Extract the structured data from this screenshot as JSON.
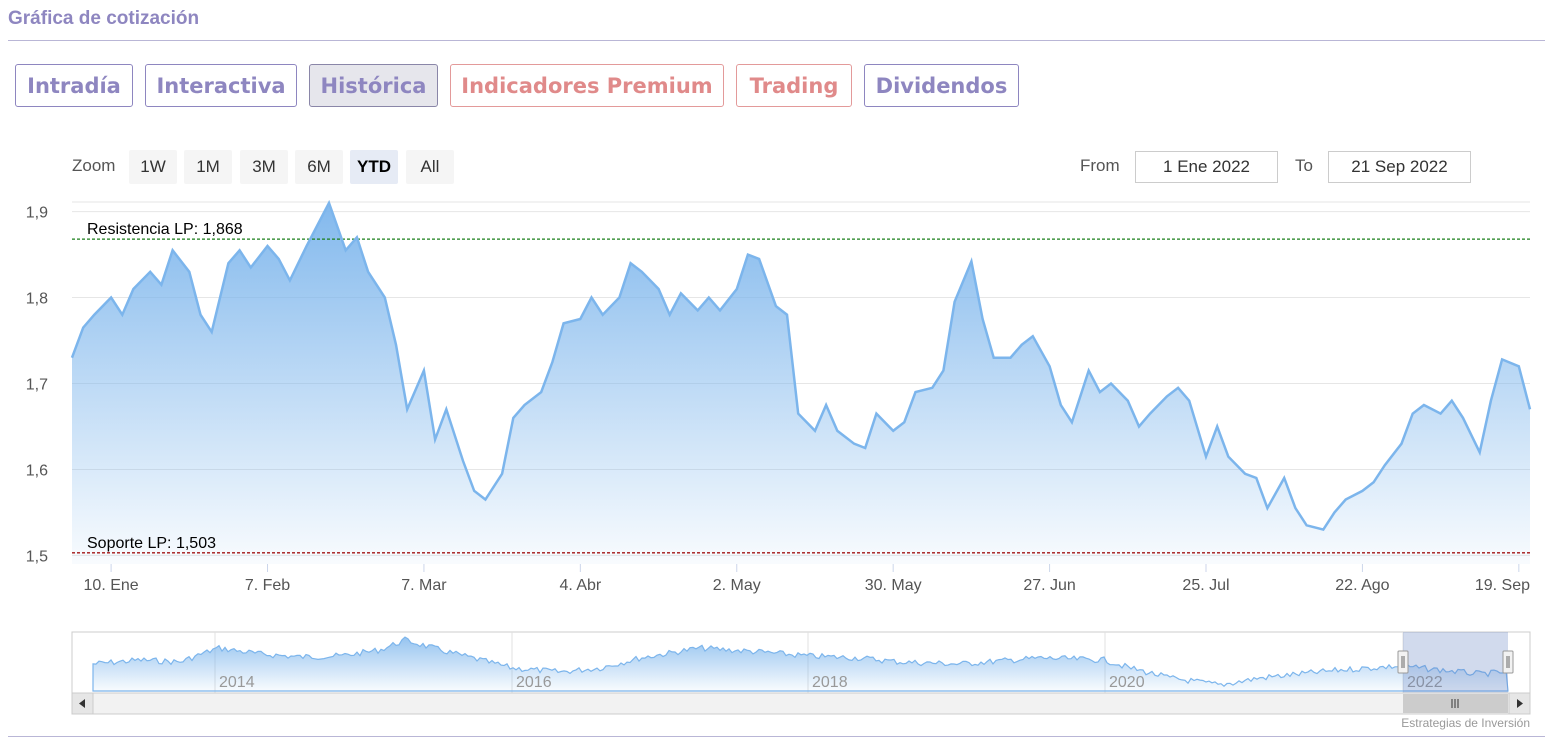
{
  "page": {
    "title": "Gráfica de cotización"
  },
  "tabs": [
    {
      "label": "Intradía",
      "active": false,
      "premium": false
    },
    {
      "label": "Interactiva",
      "active": false,
      "premium": false
    },
    {
      "label": "Histórica",
      "active": true,
      "premium": false
    },
    {
      "label": "Indicadores Premium",
      "active": false,
      "premium": true
    },
    {
      "label": "Trading",
      "active": false,
      "premium": true
    },
    {
      "label": "Dividendos",
      "active": false,
      "premium": false
    }
  ],
  "zoom": {
    "label": "Zoom",
    "buttons": [
      "1W",
      "1M",
      "3M",
      "6M",
      "YTD",
      "All"
    ],
    "selected": "YTD"
  },
  "range": {
    "from_label": "From",
    "from_value": "1 Ene 2022",
    "to_label": "To",
    "to_value": "21 Sep 2022"
  },
  "colors": {
    "accent": "#8e86c0",
    "premium": "#e08a8a",
    "line": "#7cb5ec",
    "resistance": "#1a7f1a",
    "support": "#a31515"
  },
  "chart_data": {
    "type": "area",
    "x_start": "2022-01-03",
    "x_end": "2022-09-21",
    "y_ticks": [
      "1,5",
      "1,6",
      "1,7",
      "1,8",
      "1,9"
    ],
    "ylim": [
      1.49,
      1.91
    ],
    "x_ticks": [
      {
        "label": "10. Ene",
        "date": "2022-01-10"
      },
      {
        "label": "7. Feb",
        "date": "2022-02-07"
      },
      {
        "label": "7. Mar",
        "date": "2022-03-07"
      },
      {
        "label": "4. Abr",
        "date": "2022-04-04"
      },
      {
        "label": "2. May",
        "date": "2022-05-02"
      },
      {
        "label": "30. May",
        "date": "2022-05-30"
      },
      {
        "label": "27. Jun",
        "date": "2022-06-27"
      },
      {
        "label": "25. Jul",
        "date": "2022-07-25"
      },
      {
        "label": "22. Ago",
        "date": "2022-08-22"
      },
      {
        "label": "19. Sep",
        "date": "2022-09-19"
      }
    ],
    "plot_lines": [
      {
        "label": "Resistencia LP: 1,868",
        "value": 1.868,
        "color": "#1a7f1a"
      },
      {
        "label": "Soporte LP: 1,503",
        "value": 1.503,
        "color": "#a31515"
      }
    ],
    "series": [
      {
        "points": [
          [
            "2022-01-03",
            1.73
          ],
          [
            "2022-01-05",
            1.765
          ],
          [
            "2022-01-07",
            1.78
          ],
          [
            "2022-01-10",
            1.8
          ],
          [
            "2022-01-12",
            1.78
          ],
          [
            "2022-01-14",
            1.81
          ],
          [
            "2022-01-17",
            1.83
          ],
          [
            "2022-01-19",
            1.815
          ],
          [
            "2022-01-21",
            1.855
          ],
          [
            "2022-01-24",
            1.83
          ],
          [
            "2022-01-26",
            1.78
          ],
          [
            "2022-01-28",
            1.76
          ],
          [
            "2022-01-31",
            1.84
          ],
          [
            "2022-02-02",
            1.855
          ],
          [
            "2022-02-04",
            1.835
          ],
          [
            "2022-02-07",
            1.86
          ],
          [
            "2022-02-09",
            1.845
          ],
          [
            "2022-02-11",
            1.82
          ],
          [
            "2022-02-14",
            1.86
          ],
          [
            "2022-02-16",
            1.885
          ],
          [
            "2022-02-18",
            1.91
          ],
          [
            "2022-02-21",
            1.855
          ],
          [
            "2022-02-23",
            1.87
          ],
          [
            "2022-02-25",
            1.83
          ],
          [
            "2022-02-28",
            1.8
          ],
          [
            "2022-03-02",
            1.745
          ],
          [
            "2022-03-04",
            1.67
          ],
          [
            "2022-03-07",
            1.715
          ],
          [
            "2022-03-09",
            1.635
          ],
          [
            "2022-03-11",
            1.67
          ],
          [
            "2022-03-14",
            1.61
          ],
          [
            "2022-03-16",
            1.575
          ],
          [
            "2022-03-18",
            1.565
          ],
          [
            "2022-03-21",
            1.595
          ],
          [
            "2022-03-23",
            1.66
          ],
          [
            "2022-03-25",
            1.675
          ],
          [
            "2022-03-28",
            1.69
          ],
          [
            "2022-03-30",
            1.725
          ],
          [
            "2022-04-01",
            1.77
          ],
          [
            "2022-04-04",
            1.775
          ],
          [
            "2022-04-06",
            1.8
          ],
          [
            "2022-04-08",
            1.78
          ],
          [
            "2022-04-11",
            1.8
          ],
          [
            "2022-04-13",
            1.84
          ],
          [
            "2022-04-15",
            1.83
          ],
          [
            "2022-04-18",
            1.81
          ],
          [
            "2022-04-20",
            1.78
          ],
          [
            "2022-04-22",
            1.805
          ],
          [
            "2022-04-25",
            1.785
          ],
          [
            "2022-04-27",
            1.8
          ],
          [
            "2022-04-29",
            1.785
          ],
          [
            "2022-05-02",
            1.81
          ],
          [
            "2022-05-04",
            1.85
          ],
          [
            "2022-05-06",
            1.845
          ],
          [
            "2022-05-09",
            1.79
          ],
          [
            "2022-05-11",
            1.78
          ],
          [
            "2022-05-13",
            1.665
          ],
          [
            "2022-05-16",
            1.645
          ],
          [
            "2022-05-18",
            1.675
          ],
          [
            "2022-05-20",
            1.645
          ],
          [
            "2022-05-23",
            1.63
          ],
          [
            "2022-05-25",
            1.625
          ],
          [
            "2022-05-27",
            1.665
          ],
          [
            "2022-05-30",
            1.645
          ],
          [
            "2022-06-01",
            1.655
          ],
          [
            "2022-06-03",
            1.69
          ],
          [
            "2022-06-06",
            1.695
          ],
          [
            "2022-06-08",
            1.715
          ],
          [
            "2022-06-10",
            1.795
          ],
          [
            "2022-06-13",
            1.842
          ],
          [
            "2022-06-15",
            1.775
          ],
          [
            "2022-06-17",
            1.73
          ],
          [
            "2022-06-20",
            1.73
          ],
          [
            "2022-06-22",
            1.745
          ],
          [
            "2022-06-24",
            1.755
          ],
          [
            "2022-06-27",
            1.72
          ],
          [
            "2022-06-29",
            1.675
          ],
          [
            "2022-07-01",
            1.655
          ],
          [
            "2022-07-04",
            1.715
          ],
          [
            "2022-07-06",
            1.69
          ],
          [
            "2022-07-08",
            1.7
          ],
          [
            "2022-07-11",
            1.68
          ],
          [
            "2022-07-13",
            1.65
          ],
          [
            "2022-07-15",
            1.665
          ],
          [
            "2022-07-18",
            1.685
          ],
          [
            "2022-07-20",
            1.695
          ],
          [
            "2022-07-22",
            1.68
          ],
          [
            "2022-07-25",
            1.615
          ],
          [
            "2022-07-27",
            1.65
          ],
          [
            "2022-07-29",
            1.615
          ],
          [
            "2022-08-01",
            1.595
          ],
          [
            "2022-08-03",
            1.59
          ],
          [
            "2022-08-05",
            1.555
          ],
          [
            "2022-08-08",
            1.59
          ],
          [
            "2022-08-10",
            1.555
          ],
          [
            "2022-08-12",
            1.535
          ],
          [
            "2022-08-15",
            1.53
          ],
          [
            "2022-08-17",
            1.55
          ],
          [
            "2022-08-19",
            1.565
          ],
          [
            "2022-08-22",
            1.575
          ],
          [
            "2022-08-24",
            1.585
          ],
          [
            "2022-08-26",
            1.605
          ],
          [
            "2022-08-29",
            1.63
          ],
          [
            "2022-08-31",
            1.665
          ],
          [
            "2022-09-02",
            1.675
          ],
          [
            "2022-09-05",
            1.665
          ],
          [
            "2022-09-07",
            1.68
          ],
          [
            "2022-09-09",
            1.66
          ],
          [
            "2022-09-12",
            1.62
          ],
          [
            "2022-09-14",
            1.68
          ],
          [
            "2022-09-16",
            1.728
          ],
          [
            "2022-09-19",
            1.72
          ],
          [
            "2022-09-21",
            1.67
          ]
        ]
      }
    ],
    "navigator": {
      "year_labels": [
        "2014",
        "2016",
        "2018",
        "2020",
        "2022"
      ]
    }
  },
  "credits": "Estrategias de Inversión"
}
